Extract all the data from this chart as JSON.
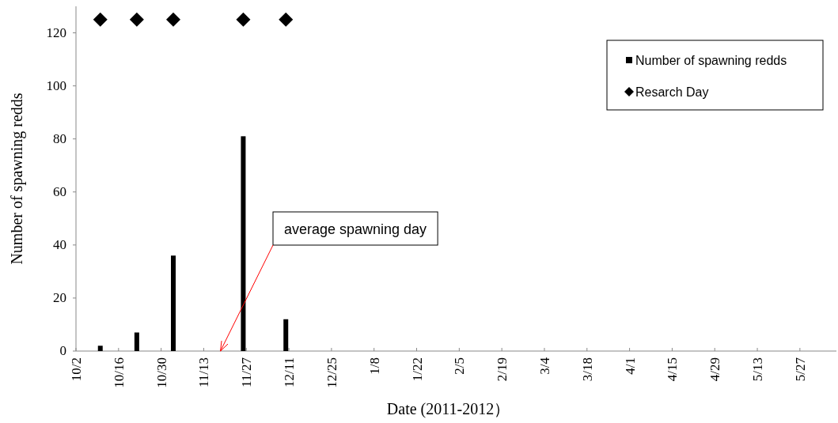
{
  "chart_data": {
    "type": "bar",
    "xlabel": "Date (2011-2012）",
    "ylabel": "Number of spawning  redds",
    "series": [
      {
        "name": "Number of spawning redds",
        "color": "#000000",
        "x": [
          "2011-10-10",
          "2011-10-22",
          "2011-11-03",
          "2011-11-26",
          "2011-12-10"
        ],
        "values": [
          2,
          7,
          36,
          81,
          12
        ]
      },
      {
        "name": "Resarch Day",
        "type": "scatter",
        "color": "#000000",
        "marker": "diamond",
        "x": [
          "2011-10-10",
          "2011-10-22",
          "2011-11-03",
          "2011-11-26",
          "2011-12-10"
        ],
        "values": [
          125,
          125,
          125,
          125,
          125
        ]
      }
    ],
    "annotations": [
      "average spawning  day"
    ],
    "xlim": [
      "2011-10-02",
      "2012-06-08"
    ],
    "xticks": [
      {
        "value": "2011-10-02",
        "label": "10/2"
      },
      {
        "value": "2011-10-16",
        "label": "10/16"
      },
      {
        "value": "2011-10-30",
        "label": "10/30"
      },
      {
        "value": "2011-11-13",
        "label": "11/13"
      },
      {
        "value": "2011-11-27",
        "label": "11/27"
      },
      {
        "value": "2011-12-11",
        "label": "12/11"
      },
      {
        "value": "2011-12-25",
        "label": "12/25"
      },
      {
        "value": "2012-01-08",
        "label": "1/8"
      },
      {
        "value": "2012-01-22",
        "label": "1/22"
      },
      {
        "value": "2012-02-05",
        "label": "2/5"
      },
      {
        "value": "2012-02-19",
        "label": "2/19"
      },
      {
        "value": "2012-03-04",
        "label": "3/4"
      },
      {
        "value": "2012-03-18",
        "label": "3/18"
      },
      {
        "value": "2012-04-01",
        "label": "4/1"
      },
      {
        "value": "2012-04-15",
        "label": "4/15"
      },
      {
        "value": "2012-04-29",
        "label": "4/29"
      },
      {
        "value": "2012-05-13",
        "label": "5/13"
      },
      {
        "value": "2012-05-27",
        "label": "5/27"
      }
    ],
    "ylim": [
      0,
      130
    ],
    "yticks": [
      0,
      20,
      40,
      60,
      80,
      100,
      120
    ],
    "grid": false,
    "legend": "top right"
  }
}
